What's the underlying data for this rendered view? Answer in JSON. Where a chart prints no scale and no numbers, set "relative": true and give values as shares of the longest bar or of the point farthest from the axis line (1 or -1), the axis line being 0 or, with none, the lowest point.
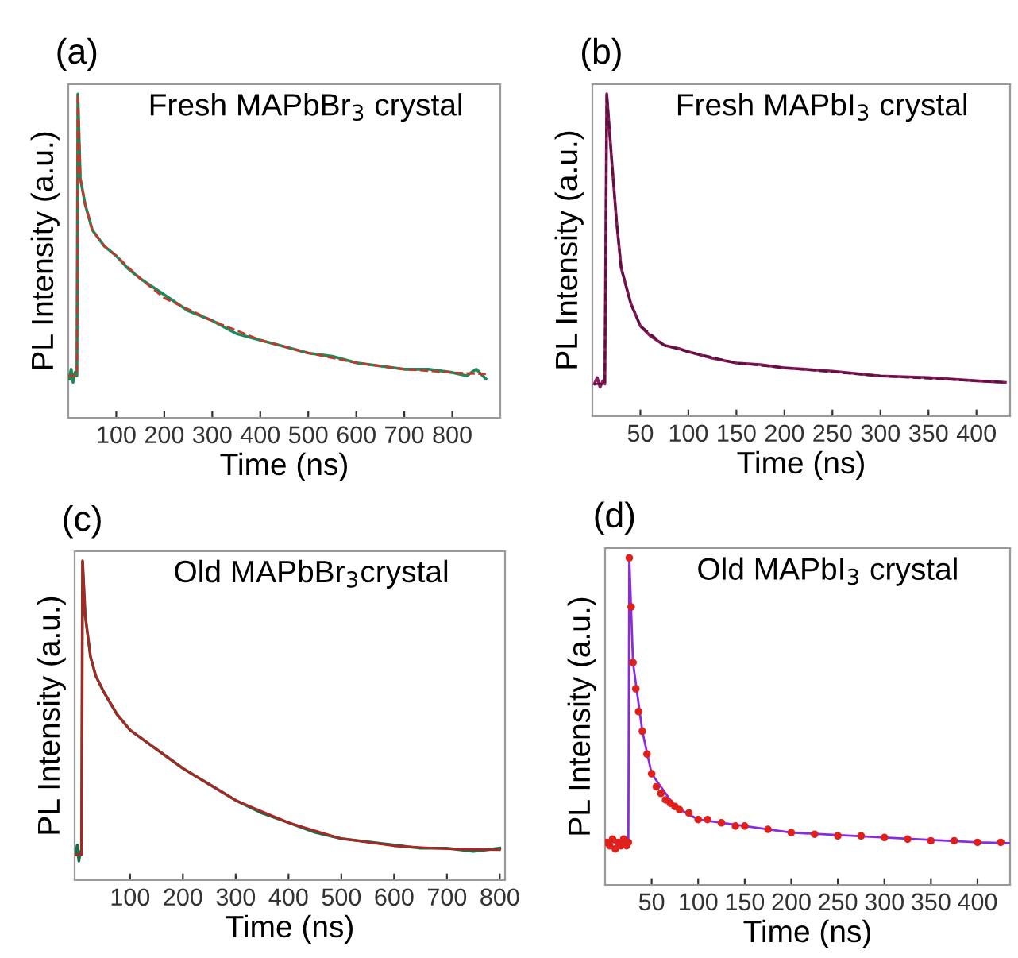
{
  "chart_data": [
    {
      "type": "line",
      "title": "Fresh MAPbBr$_{3}$ crystal",
      "xlabel": "Time (ns)",
      "ylabel": "PL Intensity (a.u.)",
      "annotations": [
        "(a)"
      ],
      "relative": true,
      "tick_labels": "x",
      "xlim": [
        0,
        900
      ],
      "xticks": [
        100,
        200,
        300,
        400,
        500,
        600,
        700,
        800
      ],
      "series": [
        {
          "color": "#1a8a5a",
          "x": [
            2,
            6,
            10,
            14,
            18,
            20,
            25,
            35,
            50,
            75,
            100,
            125,
            150,
            200,
            250,
            300,
            350,
            400,
            450,
            500,
            550,
            600,
            650,
            700,
            750,
            800,
            830,
            850,
            870
          ],
          "values": [
            0.12,
            0.15,
            0.11,
            0.14,
            0.13,
            1.0,
            0.74,
            0.66,
            0.58,
            0.53,
            0.5,
            0.46,
            0.43,
            0.38,
            0.33,
            0.3,
            0.26,
            0.24,
            0.22,
            0.2,
            0.19,
            0.17,
            0.16,
            0.15,
            0.15,
            0.14,
            0.13,
            0.15,
            0.12
          ]
        },
        {
          "color": "#c0392b",
          "line_style": "dashed",
          "x": [
            0,
            18,
            20,
            25,
            35,
            50,
            75,
            100,
            150,
            200,
            300,
            400,
            500,
            600,
            700,
            800,
            870
          ],
          "values": [
            0.13,
            0.13,
            1.0,
            0.74,
            0.66,
            0.58,
            0.53,
            0.5,
            0.43,
            0.37,
            0.3,
            0.24,
            0.2,
            0.17,
            0.15,
            0.14,
            0.135
          ]
        }
      ]
    },
    {
      "type": "line",
      "title": "Fresh MAPbI$_{3}$ crystal",
      "xlabel": "Time (ns)",
      "ylabel": "PL Intensity (a.u.)",
      "annotations": [
        "(b)"
      ],
      "relative": true,
      "tick_labels": "x",
      "xlim": [
        0,
        435
      ],
      "xticks": [
        50,
        100,
        150,
        200,
        250,
        300,
        350,
        400
      ],
      "series": [
        {
          "color": "#8b1a5a",
          "x": [
            2,
            5,
            8,
            11,
            13,
            15,
            20,
            25,
            30,
            40,
            50,
            60,
            75,
            90,
            100,
            125,
            150,
            175,
            200,
            250,
            300,
            350,
            400,
            430
          ],
          "values": [
            0.1,
            0.12,
            0.09,
            0.11,
            0.1,
            1.0,
            0.8,
            0.61,
            0.46,
            0.35,
            0.28,
            0.25,
            0.22,
            0.21,
            0.2,
            0.18,
            0.165,
            0.16,
            0.15,
            0.14,
            0.125,
            0.12,
            0.11,
            0.105
          ]
        },
        {
          "color": "#5a1040",
          "line_style": "dashed",
          "x": [
            2,
            13,
            15,
            20,
            25,
            30,
            40,
            50,
            75,
            100,
            150,
            200,
            300,
            400,
            430
          ],
          "values": [
            0.1,
            0.1,
            1.0,
            0.8,
            0.61,
            0.46,
            0.35,
            0.28,
            0.22,
            0.2,
            0.165,
            0.15,
            0.125,
            0.11,
            0.105
          ]
        }
      ]
    },
    {
      "type": "line",
      "title": "Old MAPbBr$_{3}$crystal",
      "xlabel": "Time (ns)",
      "ylabel": "PL Intensity (a.u.)",
      "annotations": [
        "(c)"
      ],
      "relative": true,
      "tick_labels": "x",
      "xlim": [
        -5,
        810
      ],
      "xticks": [
        100,
        200,
        300,
        400,
        500,
        600,
        700,
        800
      ],
      "series": [
        {
          "color": "#1a6e4a",
          "x": [
            -3,
            0,
            3,
            6,
            8,
            10,
            15,
            25,
            35,
            50,
            75,
            100,
            150,
            200,
            250,
            300,
            350,
            400,
            450,
            500,
            550,
            600,
            650,
            700,
            750,
            800
          ],
          "values": [
            0.08,
            0.11,
            0.06,
            0.09,
            0.08,
            1.0,
            0.83,
            0.7,
            0.64,
            0.59,
            0.52,
            0.47,
            0.41,
            0.35,
            0.3,
            0.25,
            0.21,
            0.18,
            0.15,
            0.13,
            0.12,
            0.11,
            0.1,
            0.1,
            0.09,
            0.1
          ]
        },
        {
          "color": "#b22222",
          "line_style": "solid",
          "x": [
            -3,
            8,
            10,
            15,
            25,
            35,
            50,
            75,
            100,
            150,
            200,
            300,
            400,
            500,
            600,
            700,
            800
          ],
          "values": [
            0.08,
            0.08,
            1.0,
            0.83,
            0.7,
            0.64,
            0.59,
            0.52,
            0.47,
            0.41,
            0.35,
            0.25,
            0.18,
            0.13,
            0.107,
            0.098,
            0.095
          ]
        }
      ]
    },
    {
      "type": "line",
      "title": "Old MAPbI$_{3}$ crystal",
      "xlabel": "Time (ns)",
      "ylabel": "PL Intensity (a.u.)",
      "annotations": [
        "(d)"
      ],
      "relative": true,
      "tick_labels": "x",
      "xlim": [
        0,
        435
      ],
      "xticks": [
        50,
        100,
        150,
        200,
        250,
        300,
        350,
        400
      ],
      "series": [
        {
          "type": "scatter",
          "marker": "circle",
          "color": "#e0201b",
          "x": [
            2,
            5,
            8,
            11,
            14,
            17,
            20,
            23,
            25,
            26,
            28,
            30,
            33,
            36,
            40,
            45,
            50,
            55,
            60,
            65,
            70,
            75,
            80,
            90,
            100,
            110,
            125,
            140,
            150,
            175,
            200,
            225,
            250,
            275,
            300,
            325,
            350,
            375,
            400,
            425
          ],
          "values": [
            0.13,
            0.12,
            0.14,
            0.11,
            0.13,
            0.12,
            0.14,
            0.12,
            0.13,
            1.0,
            0.85,
            0.68,
            0.6,
            0.53,
            0.47,
            0.4,
            0.34,
            0.3,
            0.28,
            0.26,
            0.25,
            0.24,
            0.23,
            0.22,
            0.2,
            0.2,
            0.19,
            0.18,
            0.18,
            0.17,
            0.16,
            0.155,
            0.15,
            0.15,
            0.145,
            0.14,
            0.135,
            0.135,
            0.13,
            0.13
          ]
        },
        {
          "color": "#8a2be2",
          "line_style": "solid",
          "x": [
            2,
            25,
            26,
            30,
            40,
            50,
            75,
            100,
            150,
            200,
            300,
            400,
            435
          ],
          "values": [
            0.13,
            0.13,
            1.0,
            0.68,
            0.47,
            0.34,
            0.24,
            0.2,
            0.18,
            0.16,
            0.145,
            0.13,
            0.128
          ]
        }
      ]
    }
  ]
}
